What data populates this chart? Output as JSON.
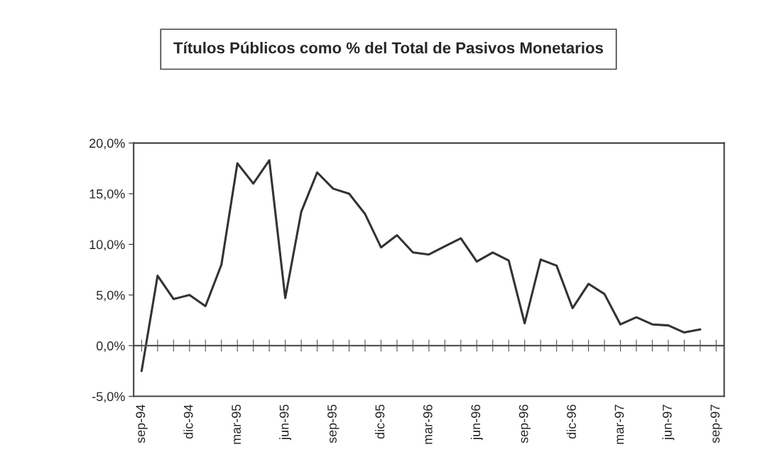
{
  "chart_data": {
    "type": "line",
    "title": "Títulos Públicos como % del Total de Pasivos Monetarios",
    "categories": [
      "sep-94",
      null,
      null,
      "dic-94",
      null,
      null,
      "mar-95",
      null,
      null,
      "jun-95",
      null,
      null,
      "sep-95",
      null,
      null,
      "dic-95",
      null,
      null,
      "mar-96",
      null,
      null,
      "jun-96",
      null,
      null,
      "sep-96",
      null,
      null,
      "dic-96",
      null,
      null,
      "mar-97",
      null,
      null,
      "jun-97",
      null,
      null,
      "sep-97"
    ],
    "series": [
      {
        "color": "#333333",
        "values": [
          -2.5,
          6.9,
          4.6,
          5.0,
          3.9,
          8.0,
          18.0,
          16.0,
          18.3,
          4.7,
          13.2,
          17.1,
          15.5,
          15.0,
          13.0,
          9.7,
          10.9,
          9.2,
          9.0,
          9.8,
          10.6,
          8.3,
          9.2,
          8.4,
          2.2,
          8.5,
          7.9,
          3.7,
          6.1,
          5.1,
          2.1,
          2.8,
          2.1,
          2.0,
          1.3,
          1.6,
          null
        ]
      }
    ],
    "ylim": [
      -5,
      20
    ],
    "yticks": [
      {
        "value": -5,
        "label": "-5,0%"
      },
      {
        "value": 0,
        "label": "0,0%"
      },
      {
        "value": 5,
        "label": "5,0%"
      },
      {
        "value": 10,
        "label": "10,0%"
      },
      {
        "value": 15,
        "label": "15,0%"
      },
      {
        "value": 20,
        "label": "20,0%"
      }
    ],
    "ref_lines": [
      {
        "axis": "y",
        "value": 0,
        "color": "#555555"
      }
    ],
    "grid": false,
    "legend": false,
    "marker": "none",
    "line_style": "solid"
  }
}
